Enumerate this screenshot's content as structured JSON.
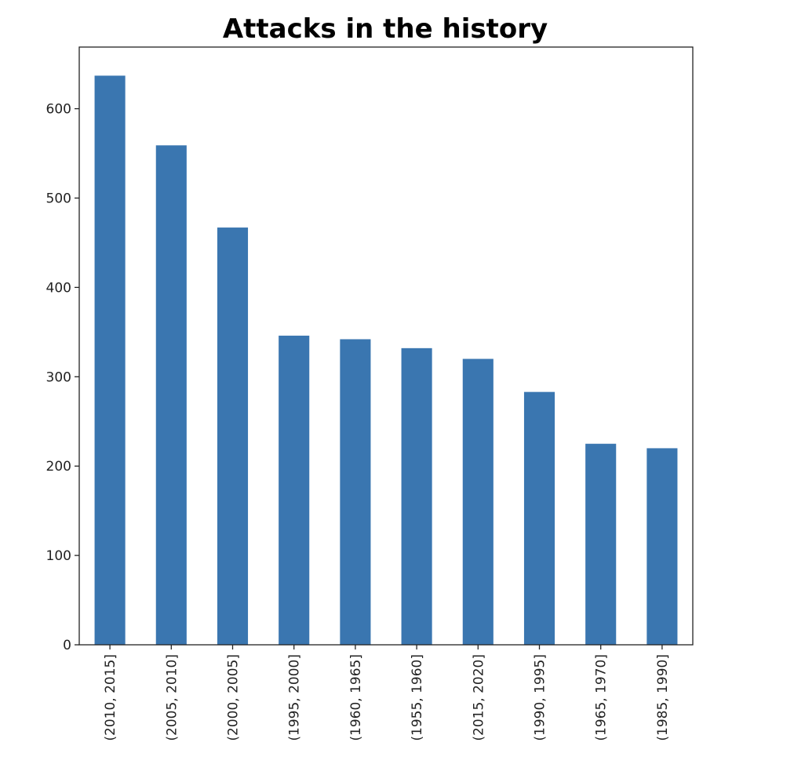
{
  "chart_data": {
    "type": "bar",
    "title": "Attacks in the history",
    "xlabel": "",
    "ylabel": "",
    "categories": [
      "(2010, 2015]",
      "(2005, 2010]",
      "(2000, 2005]",
      "(1995, 2000]",
      "(1960, 1965]",
      "(1955, 1960]",
      "(2015, 2020]",
      "(1990, 1995]",
      "(1965, 1970]",
      "(1985, 1990]"
    ],
    "values": [
      637,
      559,
      467,
      346,
      342,
      332,
      320,
      283,
      225,
      220
    ],
    "yticks": [
      0,
      100,
      200,
      300,
      400,
      500,
      600
    ],
    "ylim": [
      0,
      669
    ],
    "bar_color": "#3a76b0",
    "grid": false,
    "legend": "none"
  }
}
